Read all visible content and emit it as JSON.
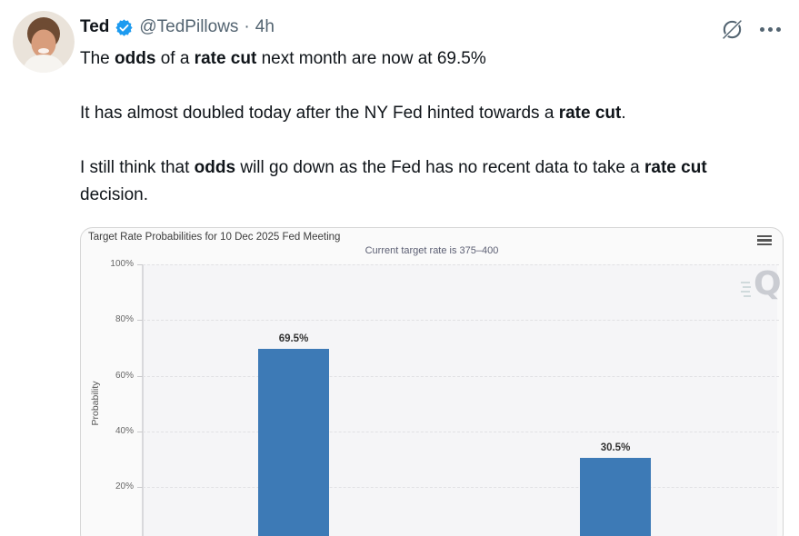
{
  "tweet": {
    "author": {
      "name": "Ted",
      "handle": "@TedPillows",
      "time_separator": "·",
      "timestamp": "4h"
    },
    "paragraphs": [
      {
        "segments": [
          {
            "text": "The "
          },
          {
            "text": "odds",
            "bold": true
          },
          {
            "text": " of a "
          },
          {
            "text": "rate cut",
            "bold": true
          },
          {
            "text": " next month are now at 69.5%"
          }
        ]
      },
      {
        "segments": [
          {
            "text": "It has almost doubled today after the NY Fed hinted towards a "
          },
          {
            "text": "rate cut",
            "bold": true
          },
          {
            "text": "."
          }
        ]
      },
      {
        "segments": [
          {
            "text": "I still think that "
          },
          {
            "text": "odds",
            "bold": true
          },
          {
            "text": " will go down as the Fed has no recent data to take a "
          },
          {
            "text": "rate cut",
            "bold": true
          },
          {
            "text": " decision."
          }
        ]
      }
    ]
  },
  "chart_data": {
    "type": "bar",
    "title": "Target Rate Probabilities for 10 Dec 2025 Fed Meeting",
    "subtitle": "Current target rate is 375–400",
    "ylabel": "Probability",
    "ylim": [
      0,
      100
    ],
    "yticks": [
      100,
      80,
      60,
      40,
      20
    ],
    "ytick_labels": [
      "100%",
      "80%",
      "60%",
      "40%",
      "20%"
    ],
    "grid": "horizontal-dashed",
    "legend": "none",
    "values": [
      69.5,
      30.5
    ],
    "value_labels": [
      "69.5%",
      "30.5%"
    ],
    "note": "x-axis category labels are cut off at the bottom of the screenshot",
    "bar_color": "#3d7ab6",
    "watermark": "Q",
    "menu_icon": "hamburger"
  },
  "colors": {
    "text_primary": "#0f1419",
    "text_secondary": "#536471",
    "verified_blue": "#1d9bf0",
    "bar_blue": "#3d7ab6",
    "card_border": "#d6d6d6",
    "card_bg": "#fafafa"
  }
}
